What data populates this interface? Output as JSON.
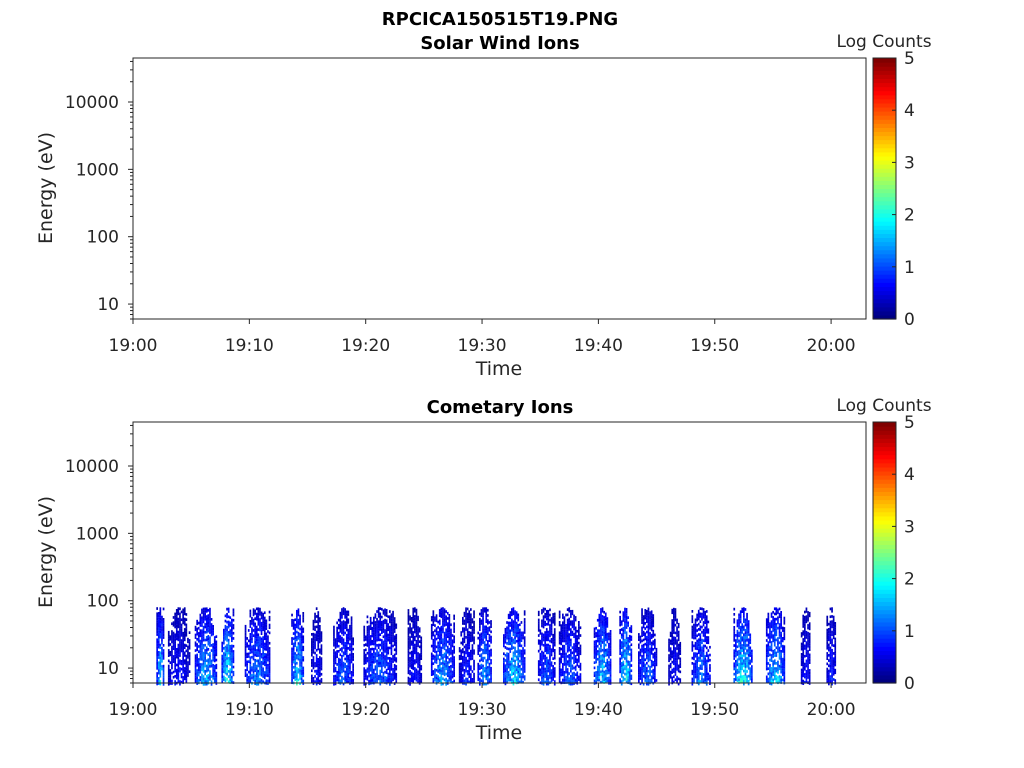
{
  "figure_title": "RPCICA150515T19.PNG",
  "chart_data": [
    {
      "type": "heatmap",
      "title": "Solar Wind Ions",
      "xlabel": "Time",
      "ylabel": "Energy (eV)",
      "x_ticks": [
        "19:00",
        "19:10",
        "19:20",
        "19:30",
        "19:40",
        "19:50",
        "20:00"
      ],
      "x_range_minutes": [
        0,
        63
      ],
      "y_scale": "log",
      "y_ticks": [
        10,
        100,
        1000,
        10000
      ],
      "y_tick_labels": [
        "10",
        "100",
        "1000",
        "10000"
      ],
      "ylim": [
        6,
        45000
      ],
      "colorbar": {
        "label": "Log Counts",
        "range": [
          0,
          5
        ],
        "ticks": [
          "0",
          "1",
          "2",
          "3",
          "4",
          "5"
        ],
        "colormap": "jet"
      },
      "grid": false,
      "bursts": []
    },
    {
      "type": "heatmap",
      "title": "Cometary Ions",
      "xlabel": "Time",
      "ylabel": "Energy (eV)",
      "x_ticks": [
        "19:00",
        "19:10",
        "19:20",
        "19:30",
        "19:40",
        "19:50",
        "20:00"
      ],
      "x_range_minutes": [
        0,
        63
      ],
      "y_scale": "log",
      "y_ticks": [
        10,
        100,
        1000,
        10000
      ],
      "y_tick_labels": [
        "10",
        "100",
        "1000",
        "10000"
      ],
      "ylim": [
        6,
        45000
      ],
      "colorbar": {
        "label": "Log Counts",
        "range": [
          0,
          5
        ],
        "ticks": [
          "0",
          "1",
          "2",
          "3",
          "4",
          "5"
        ],
        "colormap": "jet"
      },
      "grid": false,
      "energy_max_eV": 80,
      "bursts": [
        {
          "t_start": 2.0,
          "t_end": 2.6,
          "peak_log_counts": 1.6
        },
        {
          "t_start": 3.0,
          "t_end": 4.8,
          "peak_log_counts": 0.6
        },
        {
          "t_start": 5.3,
          "t_end": 7.2,
          "peak_log_counts": 1.4
        },
        {
          "t_start": 7.6,
          "t_end": 8.6,
          "peak_log_counts": 1.8
        },
        {
          "t_start": 9.6,
          "t_end": 11.8,
          "peak_log_counts": 1.2
        },
        {
          "t_start": 13.6,
          "t_end": 14.6,
          "peak_log_counts": 1.7
        },
        {
          "t_start": 15.3,
          "t_end": 16.2,
          "peak_log_counts": 0.6
        },
        {
          "t_start": 17.2,
          "t_end": 18.9,
          "peak_log_counts": 1.0
        },
        {
          "t_start": 19.8,
          "t_end": 22.6,
          "peak_log_counts": 1.0
        },
        {
          "t_start": 23.6,
          "t_end": 24.8,
          "peak_log_counts": 0.6
        },
        {
          "t_start": 25.6,
          "t_end": 27.6,
          "peak_log_counts": 1.3
        },
        {
          "t_start": 28.0,
          "t_end": 29.3,
          "peak_log_counts": 0.7
        },
        {
          "t_start": 29.6,
          "t_end": 30.8,
          "peak_log_counts": 1.3
        },
        {
          "t_start": 31.8,
          "t_end": 33.6,
          "peak_log_counts": 1.6
        },
        {
          "t_start": 34.8,
          "t_end": 36.2,
          "peak_log_counts": 1.0
        },
        {
          "t_start": 36.6,
          "t_end": 38.4,
          "peak_log_counts": 1.0
        },
        {
          "t_start": 39.6,
          "t_end": 41.0,
          "peak_log_counts": 1.6
        },
        {
          "t_start": 41.8,
          "t_end": 42.8,
          "peak_log_counts": 1.8
        },
        {
          "t_start": 43.4,
          "t_end": 45.0,
          "peak_log_counts": 1.0
        },
        {
          "t_start": 46.0,
          "t_end": 47.0,
          "peak_log_counts": 0.6
        },
        {
          "t_start": 48.0,
          "t_end": 49.6,
          "peak_log_counts": 1.2
        },
        {
          "t_start": 51.6,
          "t_end": 53.2,
          "peak_log_counts": 1.8
        },
        {
          "t_start": 54.4,
          "t_end": 56.0,
          "peak_log_counts": 1.6
        },
        {
          "t_start": 57.4,
          "t_end": 58.2,
          "peak_log_counts": 0.6
        },
        {
          "t_start": 59.6,
          "t_end": 60.4,
          "peak_log_counts": 0.7
        }
      ]
    }
  ]
}
